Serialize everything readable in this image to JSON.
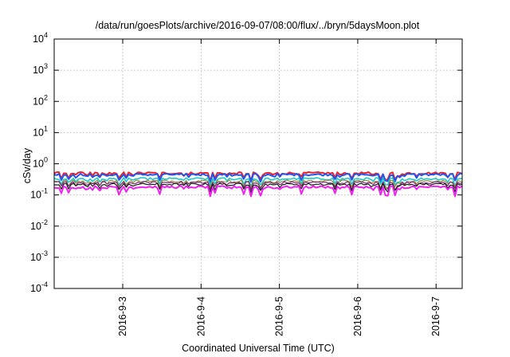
{
  "chart_data": {
    "type": "line",
    "title": "/data/run/goesPlots/archive/2016-09-07/08:00/flux/../bryn/5daysMoon.plot",
    "xlabel": "Coordinated Universal Time (UTC)",
    "ylabel": "cSv/day",
    "y_scale": "log",
    "ylim": [
      0.0001,
      10000
    ],
    "y_ticks": [
      {
        "value": 0.0001,
        "base": "10",
        "exp": "-4"
      },
      {
        "value": 0.001,
        "base": "10",
        "exp": "-3"
      },
      {
        "value": 0.01,
        "base": "10",
        "exp": "-2"
      },
      {
        "value": 0.1,
        "base": "10",
        "exp": "-1"
      },
      {
        "value": 1,
        "base": "10",
        "exp": "0"
      },
      {
        "value": 10,
        "base": "10",
        "exp": "1"
      },
      {
        "value": 100,
        "base": "10",
        "exp": "2"
      },
      {
        "value": 1000,
        "base": "10",
        "exp": "3"
      },
      {
        "value": 10000,
        "base": "10",
        "exp": "4"
      }
    ],
    "xlim": [
      "2016-09-02 03:00",
      "2016-09-07 08:00"
    ],
    "x_ticks": [
      {
        "date": "2016-09-03",
        "label": "2016-9-3"
      },
      {
        "date": "2016-09-04",
        "label": "2016-9-4"
      },
      {
        "date": "2016-09-05",
        "label": "2016-9-5"
      },
      {
        "date": "2016-09-06",
        "label": "2016-9-6"
      },
      {
        "date": "2016-09-07",
        "label": "2016-9-7"
      }
    ],
    "grid": true,
    "series_style": "noisy, roughly constant levels over the whole interval with periodic dips",
    "series": [
      {
        "color": "#e8202a",
        "level": 0.5,
        "width": 2
      },
      {
        "color": "#2255ee",
        "level": 0.45,
        "width": 2
      },
      {
        "color": "#20c8c8",
        "level": 0.33,
        "width": 1.6
      },
      {
        "color": "#9a8a3a",
        "level": 0.28,
        "width": 1.2
      },
      {
        "color": "#7a2a7a",
        "level": 0.25,
        "width": 1.2
      },
      {
        "color": "#1a1a1a",
        "level": 0.22,
        "width": 1.2
      },
      {
        "color": "#f020f0",
        "level": 0.18,
        "width": 2
      }
    ]
  }
}
